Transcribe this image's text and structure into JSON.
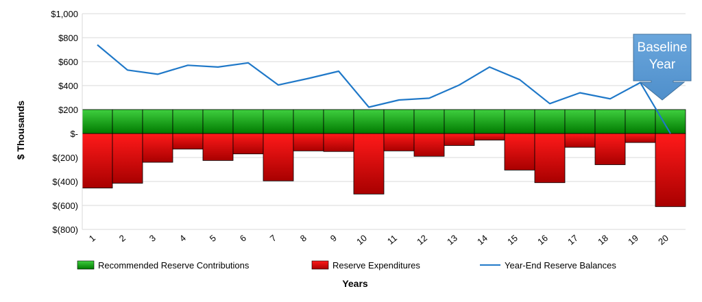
{
  "chart_data": {
    "type": "bar",
    "xlabel": "Years",
    "ylabel": "$ Thousands",
    "ylim": [
      -800,
      1000
    ],
    "yticks": [
      1000,
      800,
      600,
      400,
      200,
      0,
      -200,
      -400,
      -600,
      -800
    ],
    "ytick_labels": [
      "$1,000",
      "$800",
      "$600",
      "$400",
      "$200",
      "$-",
      "$(200)",
      "$(400)",
      "$(600)",
      "$(800)"
    ],
    "categories": [
      "1",
      "2",
      "3",
      "4",
      "5",
      "6",
      "7",
      "8",
      "9",
      "10",
      "11",
      "12",
      "13",
      "14",
      "15",
      "16",
      "17",
      "18",
      "19",
      "20"
    ],
    "grid": "horizontal",
    "legend_position": "bottom",
    "series": [
      {
        "name": "Recommended Reserve Contributions",
        "type": "bar",
        "color": "#00a000",
        "values": [
          200,
          200,
          200,
          200,
          200,
          200,
          200,
          200,
          200,
          200,
          200,
          200,
          200,
          200,
          200,
          200,
          200,
          200,
          200,
          200
        ]
      },
      {
        "name": "Reserve Expenditures",
        "type": "bar",
        "color": "#e00000",
        "values": [
          -455,
          -415,
          -240,
          -130,
          -225,
          -170,
          -395,
          -145,
          -150,
          -505,
          -145,
          -190,
          -100,
          -55,
          -305,
          -410,
          -115,
          -260,
          -75,
          -610
        ]
      },
      {
        "name": "Year-End Reserve Balances",
        "type": "line",
        "color": "#1f78c8",
        "values": [
          740,
          530,
          495,
          570,
          555,
          590,
          405,
          460,
          520,
          220,
          280,
          295,
          405,
          555,
          450,
          250,
          340,
          290,
          425,
          0
        ]
      }
    ],
    "annotation": {
      "text_lines": [
        "Baseline",
        "Year"
      ],
      "target_category": "20",
      "color": "#5b9bd5"
    }
  }
}
